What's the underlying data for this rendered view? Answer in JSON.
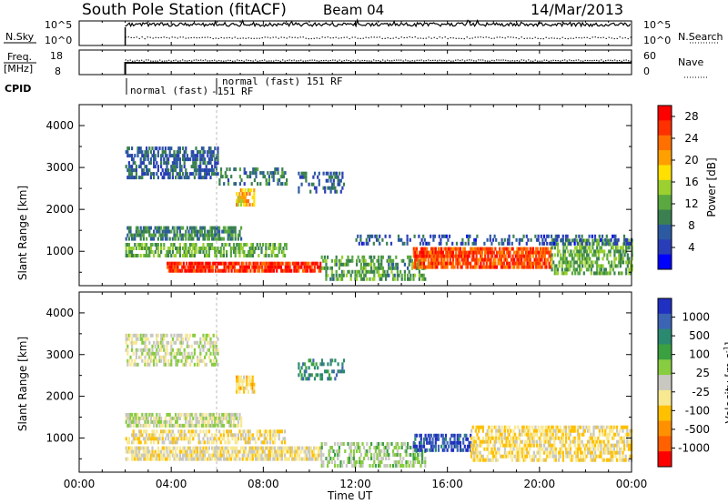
{
  "header": {
    "title": "South Pole Station (fitACF)",
    "beam": "Beam 04",
    "date": "14/Mar/2013"
  },
  "strips": {
    "nsky": {
      "label": "N.Sky",
      "left_ticks": [
        "10^5",
        "10^0"
      ],
      "right_ticks": [
        "10^5",
        "10^0"
      ],
      "right_label": "N.Search"
    },
    "freq": {
      "label_line1": "Freq.",
      "label_line2": "[MHz]",
      "left_ticks": [
        "18",
        "8"
      ],
      "right_ticks": [
        "60",
        "0"
      ],
      "right_label": "Nave"
    },
    "cpid": {
      "label": "CPID",
      "entries": [
        "normal (fast)",
        "-151 RF",
        "normal (fast) 151 RF"
      ]
    }
  },
  "colors": {
    "axis": "#000000",
    "grid_dashed": "#bbbbbb"
  },
  "chart_data": [
    {
      "type": "heatmap",
      "title": "",
      "xlabel": "Time UT",
      "ylabel": "Slant Range [km]",
      "x_ticks": [
        "00:00",
        "04:00",
        "08:00",
        "12:00",
        "16:00",
        "20:00",
        "00:00"
      ],
      "xlim_hours": [
        0,
        24
      ],
      "y_ticks": [
        1000,
        2000,
        3000,
        4000
      ],
      "ylim": [
        180,
        4500
      ],
      "colorbar": {
        "label": "Power [dB]",
        "ticks": [
          4,
          8,
          12,
          16,
          20,
          24,
          28
        ],
        "range": [
          0,
          30
        ],
        "colors": [
          "#0000ff",
          "#2a3db8",
          "#2c5aa0",
          "#3a8050",
          "#5aa840",
          "#9bd030",
          "#ffe000",
          "#ffa000",
          "#ff7000",
          "#ff3000",
          "#ff0000"
        ]
      },
      "regions": [
        {
          "t": [
            2.0,
            6.0
          ],
          "r": [
            2800,
            3500
          ],
          "dB": 6,
          "density": 0.55
        },
        {
          "t": [
            6.0,
            9.0
          ],
          "r": [
            2600,
            3000
          ],
          "dB": 8,
          "density": 0.35
        },
        {
          "t": [
            6.8,
            7.6
          ],
          "r": [
            2150,
            2500
          ],
          "dB": 20,
          "density": 0.7
        },
        {
          "t": [
            9.5,
            11.5
          ],
          "r": [
            2400,
            2900
          ],
          "dB": 6,
          "density": 0.35
        },
        {
          "t": [
            2.0,
            7.0
          ],
          "r": [
            1300,
            1600
          ],
          "dB": 9,
          "density": 0.7
        },
        {
          "t": [
            2.0,
            9.0
          ],
          "r": [
            900,
            1200
          ],
          "dB": 12,
          "density": 0.6
        },
        {
          "t": [
            3.8,
            10.5
          ],
          "r": [
            500,
            750
          ],
          "dB": 28,
          "density": 0.8
        },
        {
          "t": [
            10.5,
            15.0
          ],
          "r": [
            350,
            900
          ],
          "dB": 11,
          "density": 0.45
        },
        {
          "t": [
            14.5,
            20.5
          ],
          "r": [
            600,
            1100
          ],
          "dB": 26,
          "density": 0.8
        },
        {
          "t": [
            20.5,
            24.0
          ],
          "r": [
            500,
            1300
          ],
          "dB": 12,
          "density": 0.55
        },
        {
          "t": [
            12.0,
            24.0
          ],
          "r": [
            1200,
            1400
          ],
          "dB": 5,
          "density": 0.3
        }
      ]
    },
    {
      "type": "heatmap",
      "title": "",
      "xlabel": "Time UT",
      "ylabel": "Slant Range [km]",
      "x_ticks": [
        "00:00",
        "04:00",
        "08:00",
        "12:00",
        "16:00",
        "20:00",
        "00:00"
      ],
      "xlim_hours": [
        0,
        24
      ],
      "y_ticks": [
        1000,
        2000,
        3000,
        4000
      ],
      "ylim": [
        180,
        4500
      ],
      "colorbar": {
        "label": "Velocity [m s^-1]",
        "unit_prefix": "Velocity",
        "unit_main": "[m s",
        "unit_sup": "-1",
        "unit_end": "]",
        "ticks": [
          "1000",
          "500",
          "100",
          "25",
          "-25",
          "-100",
          "-500",
          "-1000"
        ],
        "colors": [
          "#2030c0",
          "#3c64b4",
          "#2a8a70",
          "#3aa040",
          "#88cc40",
          "#c8c8c0",
          "#f8e890",
          "#ffc000",
          "#ff9000",
          "#ff6000",
          "#ff0000"
        ]
      },
      "regions": [
        {
          "t": [
            2.0,
            6.0
          ],
          "r": [
            2800,
            3500
          ],
          "v": 0,
          "density": 0.5
        },
        {
          "t": [
            6.8,
            7.6
          ],
          "r": [
            2150,
            2500
          ],
          "v": -300,
          "density": 0.7
        },
        {
          "t": [
            9.5,
            11.5
          ],
          "r": [
            2400,
            2900
          ],
          "v": 600,
          "density": 0.35
        },
        {
          "t": [
            2.0,
            7.0
          ],
          "r": [
            1300,
            1600
          ],
          "v": 10,
          "density": 0.7
        },
        {
          "t": [
            2.0,
            9.0
          ],
          "r": [
            900,
            1200
          ],
          "v": -200,
          "density": 0.55
        },
        {
          "t": [
            2.0,
            10.5
          ],
          "r": [
            500,
            800
          ],
          "v": -150,
          "density": 0.75
        },
        {
          "t": [
            10.5,
            15.0
          ],
          "r": [
            350,
            900
          ],
          "v": 150,
          "density": 0.45
        },
        {
          "t": [
            14.5,
            17.0
          ],
          "r": [
            700,
            1100
          ],
          "v": 900,
          "density": 0.6
        },
        {
          "t": [
            17.0,
            24.0
          ],
          "r": [
            500,
            1300
          ],
          "v": -250,
          "density": 0.6
        }
      ]
    }
  ]
}
